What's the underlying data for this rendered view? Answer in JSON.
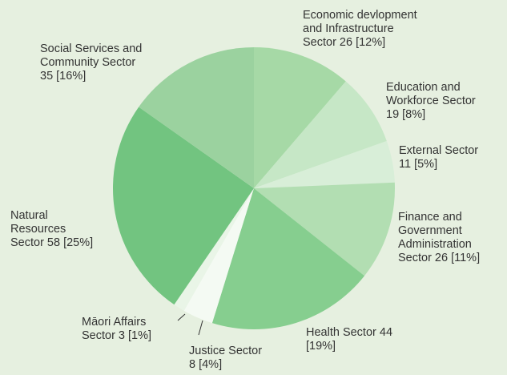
{
  "chart_data": {
    "type": "pie",
    "title": "",
    "start_angle_deg": 0,
    "direction": "clockwise",
    "slices": [
      {
        "name": "Economic devlopment and Infrastructure Sector",
        "value": 26,
        "percent": 12,
        "color": "#a6d9a6",
        "label_lines": [
          "Economic devlopment",
          "and Infrastructure",
          "Sector 26 [12%]"
        ]
      },
      {
        "name": "Education and Workforce Sector",
        "value": 19,
        "percent": 8,
        "color": "#c6e7c6",
        "label_lines": [
          "Education and",
          "Workforce Sector",
          "19 [8%]"
        ]
      },
      {
        "name": "External Sector",
        "value": 11,
        "percent": 5,
        "color": "#d8eed8",
        "label_lines": [
          "External Sector",
          "11 [5%]"
        ]
      },
      {
        "name": "Finance and Government Administration Sector",
        "value": 26,
        "percent": 11,
        "color": "#b2deb2",
        "label_lines": [
          "Finance and",
          "Government",
          "Administration",
          "Sector 26 [11%]"
        ]
      },
      {
        "name": "Health Sector",
        "value": 44,
        "percent": 19,
        "color": "#86ce8f",
        "label_lines": [
          "Health Sector 44",
          "[19%]"
        ]
      },
      {
        "name": "Justice Sector",
        "value": 8,
        "percent": 4,
        "color": "#f4faf3",
        "label_lines": [
          "Justice Sector",
          "8 [4%]"
        ]
      },
      {
        "name": "Māori Affairs Sector",
        "value": 3,
        "percent": 1,
        "color": "#e9f5e7",
        "label_lines": [
          "Māori Affairs",
          "Sector 3 [1%]"
        ]
      },
      {
        "name": "Natural Resources Sector",
        "value": 58,
        "percent": 25,
        "color": "#72c480",
        "label_lines": [
          "Natural",
          "Resources",
          "Sector 58 [25%]"
        ]
      },
      {
        "name": "Social Services and Community Sector",
        "value": 35,
        "percent": 16,
        "color": "#9bd29f",
        "label_lines": [
          "Social Services and",
          "Community Sector",
          "35 [16%]"
        ]
      }
    ]
  }
}
